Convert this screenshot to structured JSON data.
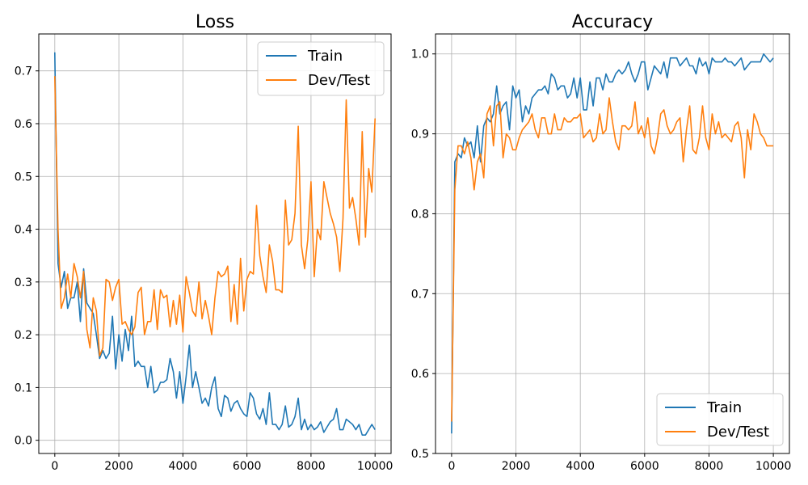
{
  "chart_data": [
    {
      "type": "line",
      "title": "Loss",
      "xlabel": "",
      "ylabel": "",
      "xlim": [
        -500,
        10500
      ],
      "ylim": [
        -0.025,
        0.77
      ],
      "xticks": [
        0,
        2000,
        4000,
        6000,
        8000,
        10000
      ],
      "yticks": [
        0.0,
        0.1,
        0.2,
        0.3,
        0.4,
        0.5,
        0.6,
        0.7
      ],
      "ytick_labels": [
        "0.0",
        "0.1",
        "0.2",
        "0.3",
        "0.4",
        "0.5",
        "0.6",
        "0.7"
      ],
      "grid": true,
      "legend_loc": "top-right",
      "x": [
        0,
        100,
        200,
        300,
        400,
        500,
        600,
        700,
        800,
        900,
        1000,
        1100,
        1200,
        1300,
        1400,
        1500,
        1600,
        1700,
        1800,
        1900,
        2000,
        2100,
        2200,
        2300,
        2400,
        2500,
        2600,
        2700,
        2800,
        2900,
        3000,
        3100,
        3200,
        3300,
        3400,
        3500,
        3600,
        3700,
        3800,
        3900,
        4000,
        4100,
        4200,
        4300,
        4400,
        4500,
        4600,
        4700,
        4800,
        4900,
        5000,
        5100,
        5200,
        5300,
        5400,
        5500,
        5600,
        5700,
        5800,
        5900,
        6000,
        6100,
        6200,
        6300,
        6400,
        6500,
        6600,
        6700,
        6800,
        6900,
        7000,
        7100,
        7200,
        7300,
        7400,
        7500,
        7600,
        7700,
        7800,
        7900,
        8000,
        8100,
        8200,
        8300,
        8400,
        8500,
        8600,
        8700,
        8800,
        8900,
        9000,
        9100,
        9200,
        9300,
        9400,
        9500,
        9600,
        9700,
        9800,
        9900,
        10000
      ],
      "series": [
        {
          "name": "Train",
          "color": "#1f77b4",
          "values": [
            0.735,
            0.335,
            0.29,
            0.32,
            0.25,
            0.27,
            0.27,
            0.3,
            0.225,
            0.325,
            0.26,
            0.25,
            0.24,
            0.2,
            0.155,
            0.17,
            0.155,
            0.165,
            0.235,
            0.135,
            0.2,
            0.15,
            0.21,
            0.17,
            0.235,
            0.14,
            0.15,
            0.14,
            0.14,
            0.1,
            0.14,
            0.09,
            0.095,
            0.11,
            0.11,
            0.115,
            0.155,
            0.13,
            0.08,
            0.13,
            0.07,
            0.12,
            0.18,
            0.1,
            0.13,
            0.1,
            0.07,
            0.08,
            0.065,
            0.1,
            0.12,
            0.06,
            0.045,
            0.085,
            0.08,
            0.055,
            0.07,
            0.075,
            0.06,
            0.05,
            0.045,
            0.09,
            0.08,
            0.05,
            0.04,
            0.06,
            0.03,
            0.09,
            0.03,
            0.03,
            0.02,
            0.03,
            0.065,
            0.025,
            0.03,
            0.045,
            0.08,
            0.02,
            0.04,
            0.02,
            0.03,
            0.02,
            0.025,
            0.035,
            0.015,
            0.025,
            0.035,
            0.04,
            0.06,
            0.02,
            0.02,
            0.04,
            0.035,
            0.03,
            0.02,
            0.03,
            0.01,
            0.01,
            0.02,
            0.03,
            0.02
          ]
        },
        {
          "name": "Dev/Test",
          "color": "#ff7f0e",
          "values": [
            0.69,
            0.4,
            0.25,
            0.27,
            0.315,
            0.27,
            0.335,
            0.31,
            0.27,
            0.32,
            0.21,
            0.175,
            0.27,
            0.245,
            0.16,
            0.175,
            0.305,
            0.3,
            0.265,
            0.29,
            0.305,
            0.22,
            0.225,
            0.21,
            0.2,
            0.215,
            0.28,
            0.29,
            0.2,
            0.225,
            0.225,
            0.285,
            0.21,
            0.285,
            0.27,
            0.275,
            0.215,
            0.265,
            0.22,
            0.275,
            0.205,
            0.31,
            0.28,
            0.245,
            0.235,
            0.3,
            0.23,
            0.265,
            0.235,
            0.2,
            0.27,
            0.32,
            0.31,
            0.315,
            0.33,
            0.225,
            0.295,
            0.22,
            0.345,
            0.245,
            0.305,
            0.32,
            0.315,
            0.445,
            0.35,
            0.31,
            0.28,
            0.37,
            0.34,
            0.285,
            0.285,
            0.28,
            0.455,
            0.37,
            0.38,
            0.43,
            0.595,
            0.37,
            0.325,
            0.38,
            0.49,
            0.31,
            0.4,
            0.38,
            0.49,
            0.46,
            0.43,
            0.41,
            0.385,
            0.32,
            0.42,
            0.645,
            0.44,
            0.46,
            0.42,
            0.37,
            0.585,
            0.385,
            0.515,
            0.47,
            0.61
          ]
        }
      ]
    },
    {
      "type": "line",
      "title": "Accuracy",
      "xlabel": "",
      "ylabel": "",
      "xlim": [
        -500,
        10500
      ],
      "ylim": [
        0.5,
        1.025
      ],
      "xticks": [
        0,
        2000,
        4000,
        6000,
        8000,
        10000
      ],
      "yticks": [
        0.5,
        0.6,
        0.7,
        0.8,
        0.9,
        1.0
      ],
      "ytick_labels": [
        "0.5",
        "0.6",
        "0.7",
        "0.8",
        "0.9",
        "1.0"
      ],
      "grid": true,
      "legend_loc": "bottom-right",
      "x": [
        0,
        100,
        200,
        300,
        400,
        500,
        600,
        700,
        800,
        900,
        1000,
        1100,
        1200,
        1300,
        1400,
        1500,
        1600,
        1700,
        1800,
        1900,
        2000,
        2100,
        2200,
        2300,
        2400,
        2500,
        2600,
        2700,
        2800,
        2900,
        3000,
        3100,
        3200,
        3300,
        3400,
        3500,
        3600,
        3700,
        3800,
        3900,
        4000,
        4100,
        4200,
        4300,
        4400,
        4500,
        4600,
        4700,
        4800,
        4900,
        5000,
        5100,
        5200,
        5300,
        5400,
        5500,
        5600,
        5700,
        5800,
        5900,
        6000,
        6100,
        6200,
        6300,
        6400,
        6500,
        6600,
        6700,
        6800,
        6900,
        7000,
        7100,
        7200,
        7300,
        7400,
        7500,
        7600,
        7700,
        7800,
        7900,
        8000,
        8100,
        8200,
        8300,
        8400,
        8500,
        8600,
        8700,
        8800,
        8900,
        9000,
        9100,
        9200,
        9300,
        9400,
        9500,
        9600,
        9700,
        9800,
        9900,
        10000
      ],
      "series": [
        {
          "name": "Train",
          "color": "#1f77b4",
          "values": [
            0.525,
            0.865,
            0.875,
            0.87,
            0.895,
            0.885,
            0.89,
            0.87,
            0.91,
            0.865,
            0.91,
            0.92,
            0.915,
            0.925,
            0.96,
            0.925,
            0.935,
            0.94,
            0.905,
            0.96,
            0.945,
            0.955,
            0.915,
            0.935,
            0.925,
            0.945,
            0.95,
            0.955,
            0.955,
            0.96,
            0.95,
            0.975,
            0.97,
            0.955,
            0.96,
            0.96,
            0.945,
            0.95,
            0.97,
            0.945,
            0.97,
            0.93,
            0.93,
            0.965,
            0.935,
            0.97,
            0.97,
            0.955,
            0.975,
            0.965,
            0.965,
            0.975,
            0.98,
            0.975,
            0.98,
            0.99,
            0.975,
            0.965,
            0.975,
            0.99,
            0.99,
            0.955,
            0.97,
            0.985,
            0.98,
            0.975,
            0.99,
            0.97,
            0.995,
            0.995,
            0.995,
            0.985,
            0.99,
            0.995,
            0.985,
            0.985,
            0.975,
            0.995,
            0.985,
            0.99,
            0.975,
            0.995,
            0.99,
            0.99,
            0.99,
            0.995,
            0.99,
            0.99,
            0.985,
            0.99,
            0.995,
            0.98,
            0.985,
            0.99,
            0.99,
            0.99,
            0.99,
            1.0,
            0.995,
            0.99,
            0.995
          ]
        },
        {
          "name": "Dev/Test",
          "color": "#ff7f0e",
          "values": [
            0.54,
            0.83,
            0.885,
            0.885,
            0.875,
            0.89,
            0.87,
            0.83,
            0.865,
            0.875,
            0.845,
            0.925,
            0.935,
            0.885,
            0.935,
            0.94,
            0.87,
            0.9,
            0.895,
            0.88,
            0.88,
            0.895,
            0.905,
            0.91,
            0.915,
            0.925,
            0.905,
            0.895,
            0.92,
            0.92,
            0.9,
            0.9,
            0.925,
            0.905,
            0.905,
            0.92,
            0.915,
            0.915,
            0.92,
            0.92,
            0.925,
            0.895,
            0.9,
            0.905,
            0.89,
            0.895,
            0.925,
            0.9,
            0.905,
            0.945,
            0.915,
            0.89,
            0.88,
            0.91,
            0.91,
            0.905,
            0.91,
            0.94,
            0.9,
            0.91,
            0.895,
            0.92,
            0.885,
            0.875,
            0.895,
            0.925,
            0.93,
            0.91,
            0.9,
            0.905,
            0.915,
            0.92,
            0.865,
            0.905,
            0.935,
            0.88,
            0.875,
            0.895,
            0.935,
            0.895,
            0.88,
            0.925,
            0.9,
            0.915,
            0.895,
            0.9,
            0.895,
            0.89,
            0.91,
            0.915,
            0.895,
            0.845,
            0.905,
            0.88,
            0.925,
            0.915,
            0.9,
            0.895,
            0.885,
            0.885,
            0.885
          ]
        }
      ]
    }
  ]
}
